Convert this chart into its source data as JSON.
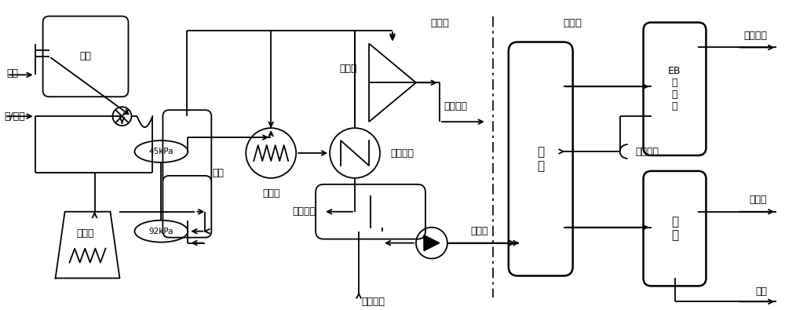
{
  "fig_width": 10.0,
  "fig_height": 3.95,
  "dpi": 100,
  "lw": 1.3,
  "labels": {
    "yiben": "乙苯",
    "water_steam": "水/蒸汽",
    "zhengfa": "蒸发",
    "fangying": "反应",
    "jiare": "加热炉",
    "pressure_45": "45kPa",
    "pressure_92": "92kPa",
    "heat_recovery": "热回收",
    "compressor": "压缩机",
    "condensing": "冷凝冷却",
    "oil_sep": "油水分离",
    "h2_tail": "脱氢尾气",
    "h2_liquid": "脱氢液",
    "process_condensate": "工艺凝液",
    "crude_tower": "粗\n塔",
    "EB_tower": "EB\n回\n收\n塔",
    "fine_tower": "精\n塔",
    "recycle_eb": "循环乙苯",
    "benzene_toluene": "苯、甲苯",
    "styrene": "苯乙烯",
    "tar": "焦油",
    "reaction_zone": "反应区",
    "distillation_zone": "精馏区"
  }
}
